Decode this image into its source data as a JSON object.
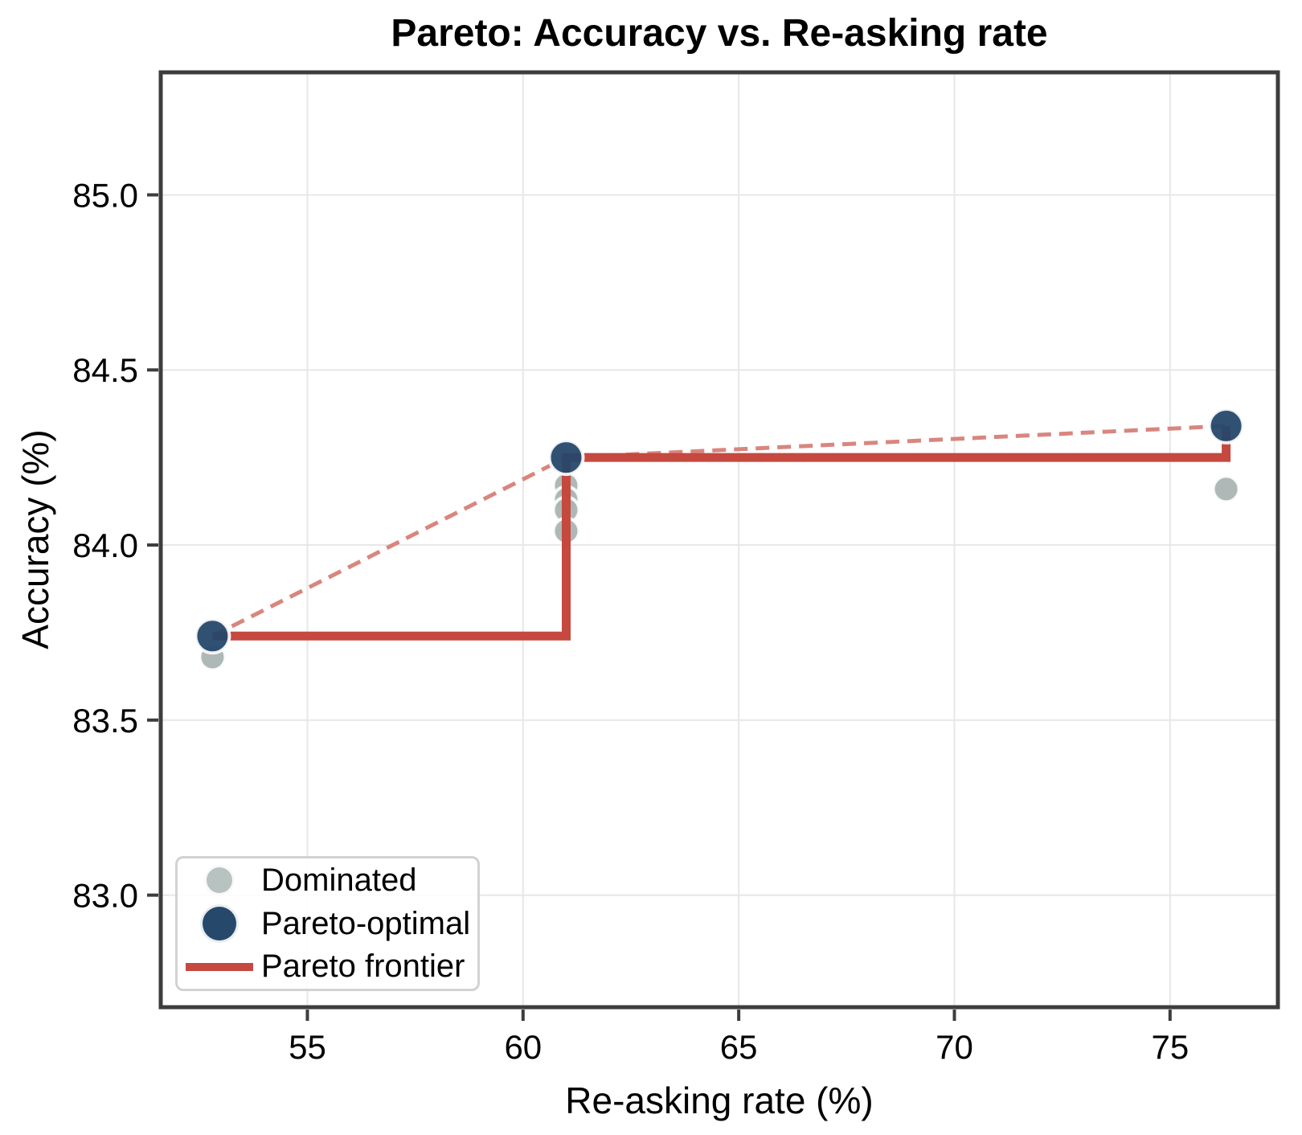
{
  "chart_data": {
    "type": "scatter",
    "title": "Pareto: Accuracy vs. Re-asking rate",
    "xlabel": "Re-asking rate (%)",
    "ylabel": "Accuracy (%)",
    "xlim": [
      51.6,
      77.5
    ],
    "ylim": [
      82.68,
      85.35
    ],
    "xticks": [
      55,
      60,
      65,
      70,
      75
    ],
    "xtick_labels": [
      "55",
      "60",
      "65",
      "70",
      "75"
    ],
    "yticks": [
      83.0,
      83.5,
      84.0,
      84.5,
      85.0
    ],
    "ytick_labels": [
      "83.0",
      "83.5",
      "84.0",
      "84.5",
      "85.0"
    ],
    "grid": true,
    "legend_position": "lower left",
    "series": [
      {
        "name": "Dominated",
        "kind": "scatter",
        "color": "#aab5b3",
        "edge_color": "rgba(255,255,255,0.9)",
        "marker_radius": 16,
        "points": [
          [
            52.8,
            83.68
          ],
          [
            61.0,
            84.17
          ],
          [
            61.0,
            84.13
          ],
          [
            61.0,
            84.1
          ],
          [
            61.0,
            84.04
          ],
          [
            76.3,
            84.16
          ]
        ]
      },
      {
        "name": "Pareto-optimal",
        "kind": "scatter",
        "color": "#26486b",
        "edge_color": "rgba(255,255,255,0.9)",
        "marker_radius": 21,
        "points": [
          [
            52.8,
            83.74
          ],
          [
            61.0,
            84.25
          ],
          [
            76.3,
            84.34
          ]
        ]
      },
      {
        "name": "Pareto frontier",
        "kind": "line",
        "style": "solid",
        "color": "#c5493f",
        "line_width": 11,
        "points": [
          [
            52.8,
            83.74
          ],
          [
            61.0,
            83.74
          ],
          [
            61.0,
            84.25
          ],
          [
            76.3,
            84.25
          ],
          [
            76.3,
            84.34
          ]
        ]
      },
      {
        "name": "Pareto connector",
        "kind": "line",
        "style": "dashed",
        "color": "#d8867e",
        "line_width": 5,
        "points": [
          [
            52.8,
            83.74
          ],
          [
            61.0,
            84.25
          ],
          [
            76.3,
            84.34
          ]
        ]
      }
    ],
    "legend": [
      {
        "label": "Dominated",
        "marker": "circle",
        "color": "#b8c3c1",
        "diameter": 32
      },
      {
        "label": "Pareto-optimal",
        "marker": "circle",
        "color": "#26486b",
        "diameter": 42
      },
      {
        "label": "Pareto frontier",
        "marker": "line",
        "color": "#c5493f"
      }
    ],
    "style": {
      "spine_color": "#3d3d3d",
      "grid_color": "#e7e7e7",
      "tick_color": "#3d3d3d",
      "text_color": "#000000",
      "background": "#ffffff"
    }
  }
}
